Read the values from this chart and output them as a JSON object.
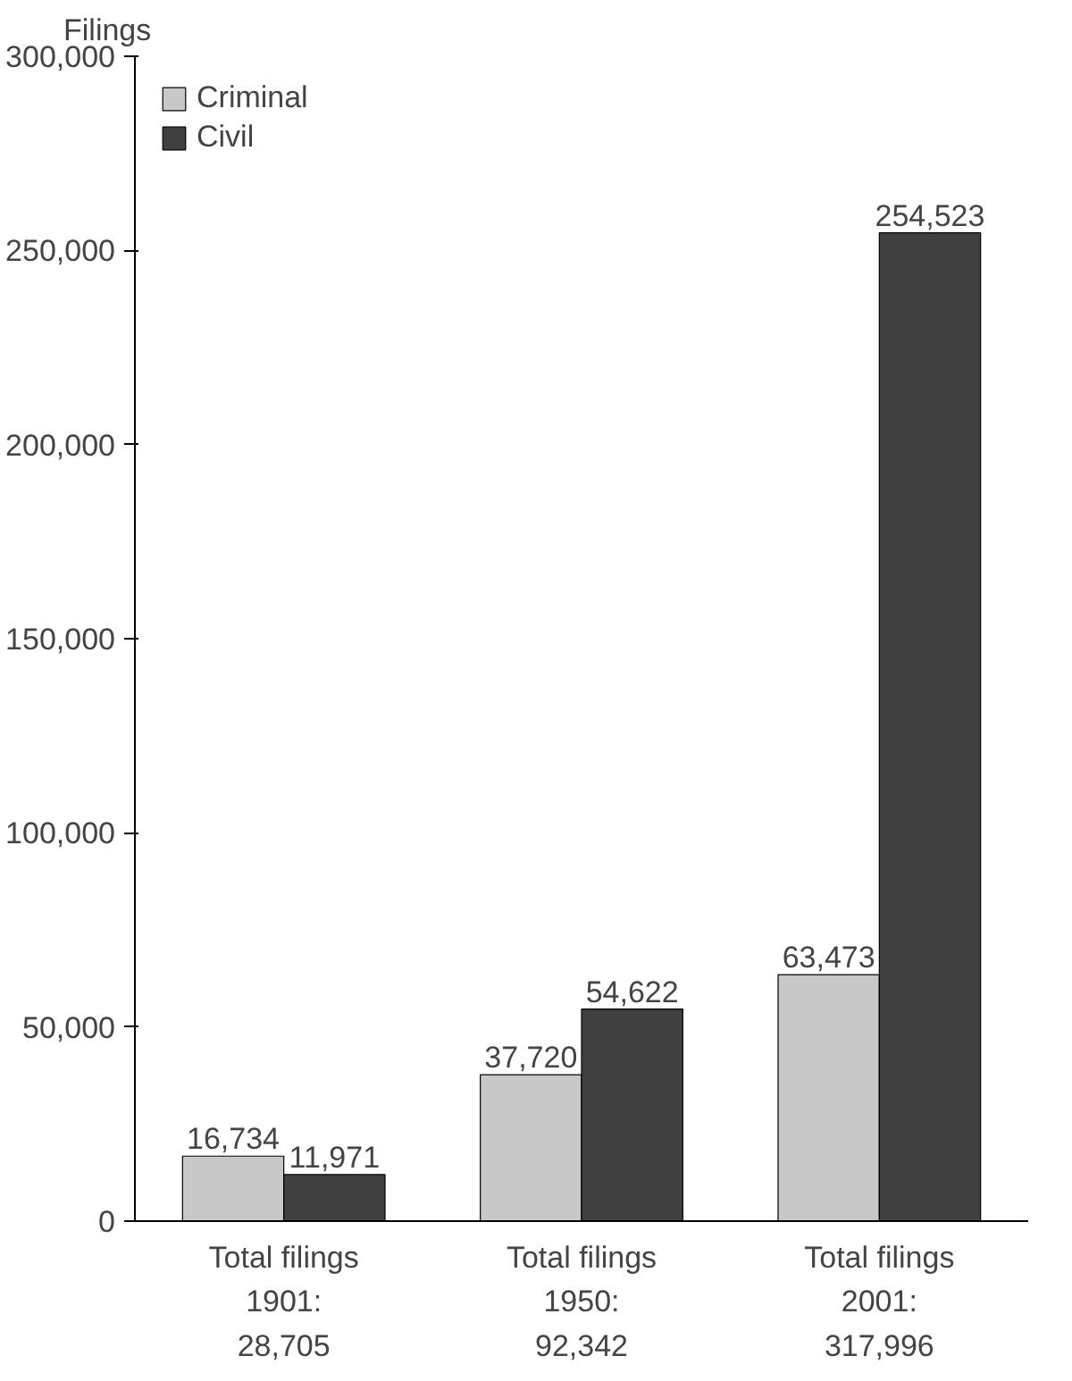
{
  "chart_data": {
    "type": "bar",
    "ylabel": "Filings",
    "categories": [
      "Total filings\n1901:\n28,705",
      "Total filings\n1950:\n92,342",
      "Total filings\n2001:\n317,996"
    ],
    "series": [
      {
        "name": "Criminal",
        "color": "#c8c8c8",
        "values": [
          16734,
          37720,
          63473
        ],
        "value_labels": [
          "16,734",
          "37,720",
          "63,473"
        ]
      },
      {
        "name": "Civil",
        "color": "#404040",
        "values": [
          11971,
          54622,
          254523
        ],
        "value_labels": [
          "11,971",
          "54,622",
          "254,523"
        ]
      }
    ],
    "ylim": [
      0,
      300000
    ],
    "yticks": [
      0,
      {
        "value": 50000,
        "label": "50,000"
      },
      {
        "value": 100000,
        "label": "100,000"
      },
      {
        "value": 150000,
        "label": "150,000"
      },
      {
        "value": 200000,
        "label": "200,000"
      },
      {
        "value": 250000,
        "label": "250,000"
      },
      {
        "value": 300000,
        "label": "300,000"
      }
    ],
    "grid": false,
    "legend": "top left"
  }
}
